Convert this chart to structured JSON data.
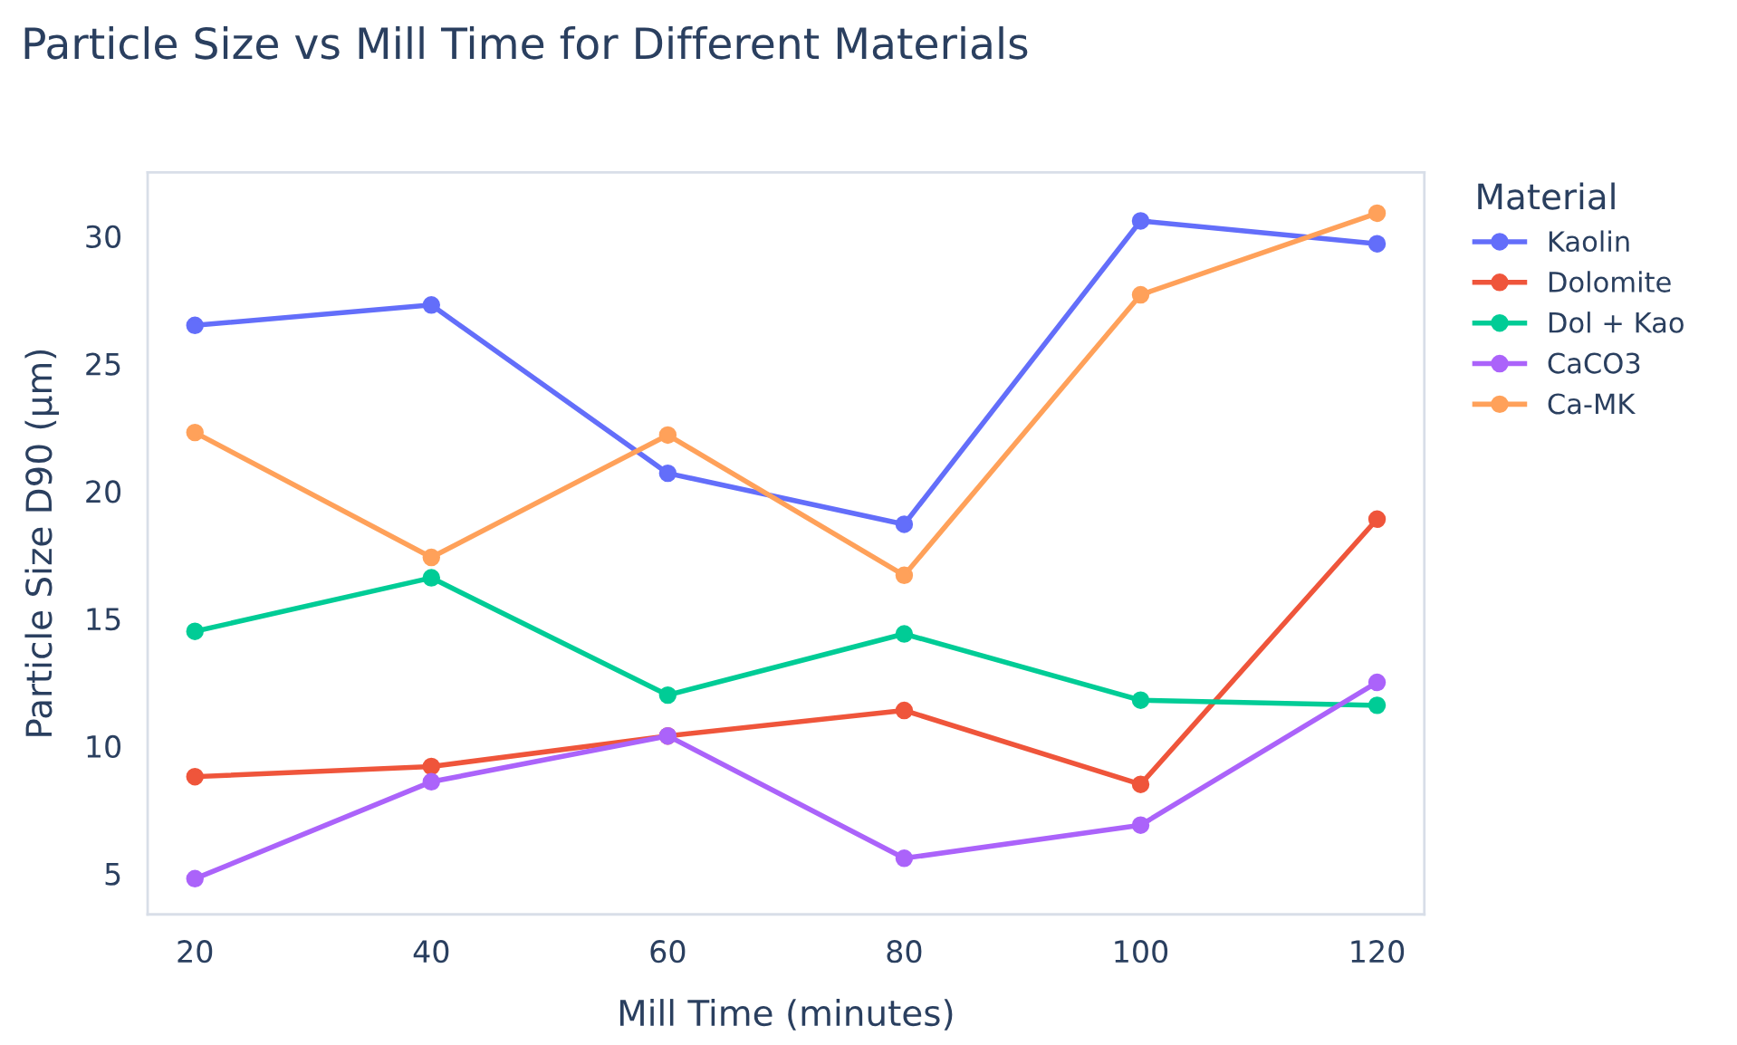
{
  "chart_data": {
    "type": "line",
    "title": "Particle Size vs Mill Time for Different Materials",
    "xlabel": "Mill Time (minutes)",
    "ylabel": "Particle Size D90 (µm)",
    "legend_title": "Material",
    "x": [
      20,
      40,
      60,
      80,
      100,
      120
    ],
    "series": [
      {
        "name": "Kaolin",
        "color": "#636efa",
        "values": [
          26.5,
          27.3,
          20.7,
          18.7,
          30.6,
          29.7
        ]
      },
      {
        "name": "Dolomite",
        "color": "#ef553b",
        "values": [
          8.8,
          9.2,
          10.4,
          11.4,
          8.5,
          18.9
        ]
      },
      {
        "name": "Dol + Kao",
        "color": "#00cc96",
        "values": [
          14.5,
          16.6,
          12.0,
          14.4,
          11.8,
          11.6
        ]
      },
      {
        "name": "CaCO3",
        "color": "#ab63fa",
        "values": [
          4.8,
          8.6,
          10.4,
          5.6,
          6.9,
          12.5
        ]
      },
      {
        "name": "Ca-MK",
        "color": "#ffa15a",
        "values": [
          22.3,
          17.4,
          22.2,
          16.7,
          27.7,
          30.9
        ]
      }
    ],
    "xlim": [
      16,
      124
    ],
    "ylim": [
      3.4,
      32.5
    ],
    "xticks": [
      20,
      40,
      60,
      80,
      100,
      120
    ],
    "yticks": [
      5,
      10,
      15,
      20,
      25,
      30
    ],
    "marker": "circle",
    "line_style": "solid",
    "legend": "right",
    "grid": false
  }
}
